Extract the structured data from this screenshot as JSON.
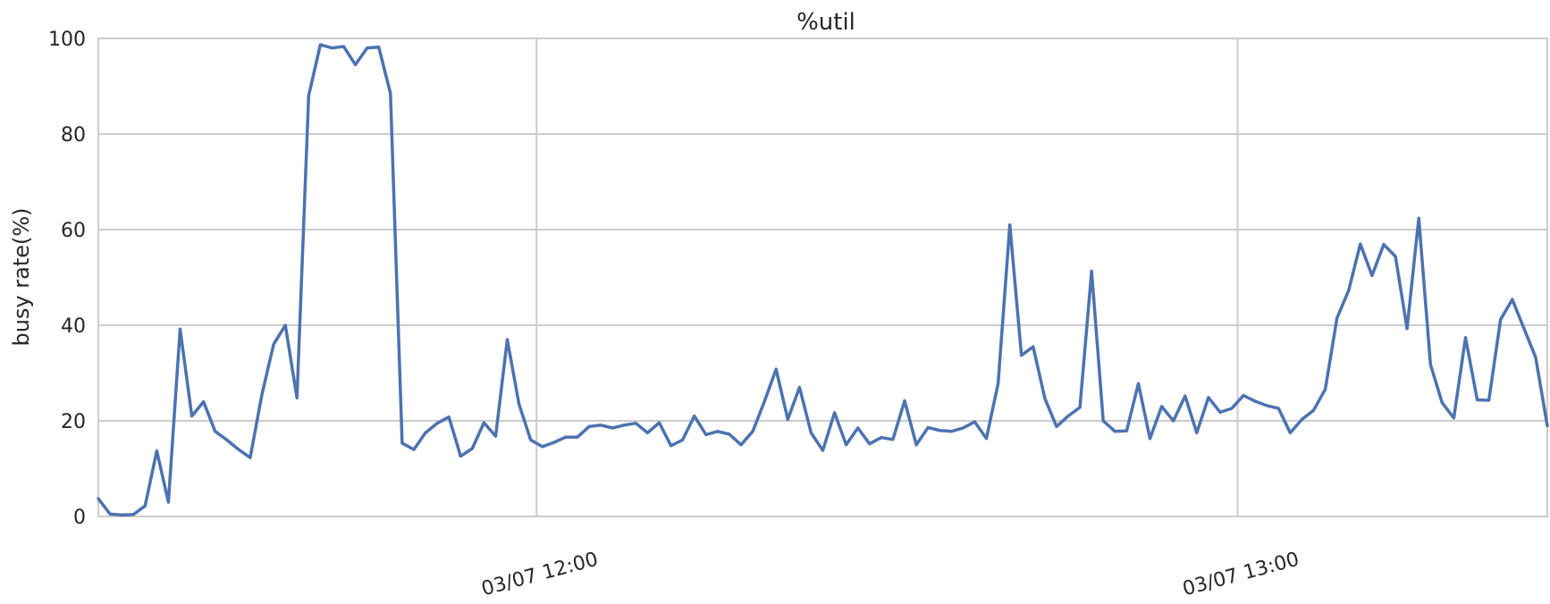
{
  "chart_data": {
    "type": "line",
    "title": "%util",
    "xlabel": "",
    "ylabel": "busy rate(%)",
    "ylim": [
      0,
      100
    ],
    "yticks": [
      "0",
      "20",
      "40",
      "60",
      "80",
      "100"
    ],
    "xticks": [
      {
        "label": "03/07 12:00",
        "value": "03/07 12:00"
      },
      {
        "label": "03/07 13:00",
        "value": "03/07 13:00"
      }
    ],
    "xlim": [
      "03/07 11:22:30",
      "03/07 13:26:30"
    ],
    "sample_interval": "1 min",
    "grid": true,
    "legend": "none",
    "series": [
      {
        "color": "#4c72b0",
        "values": [
          3.7,
          0.5,
          0.3,
          0.4,
          2.2,
          13.7,
          3.0,
          39.2,
          21.0,
          24.0,
          17.8,
          16.0,
          14.0,
          12.3,
          25.5,
          36.0,
          40.0,
          24.8,
          88.0,
          98.7,
          98.0,
          98.3,
          94.5,
          98.0,
          98.2,
          88.5,
          15.3,
          14.0,
          17.5,
          19.5,
          20.8,
          12.6,
          14.2,
          19.6,
          16.8,
          37.0,
          23.5,
          16.0,
          14.6,
          15.5,
          16.6,
          16.6,
          18.8,
          19.1,
          18.5,
          19.1,
          19.5,
          17.5,
          19.6,
          14.8,
          16.0,
          21.0,
          17.1,
          17.8,
          17.2,
          15.0,
          17.8,
          24.0,
          30.8,
          20.3,
          27.0,
          17.5,
          13.8,
          21.7,
          15.0,
          18.5,
          15.2,
          16.5,
          16.1,
          24.2,
          15.0,
          18.6,
          18.0,
          17.8,
          18.5,
          19.8,
          16.3,
          27.8,
          61.0,
          33.7,
          35.5,
          24.7,
          18.8,
          21.0,
          22.8,
          51.3,
          20.0,
          17.8,
          17.9,
          27.8,
          16.3,
          23.0,
          20.0,
          25.2,
          17.5,
          24.9,
          21.8,
          22.6,
          25.3,
          24.1,
          23.2,
          22.6,
          17.5,
          20.3,
          22.2,
          26.6,
          41.5,
          47.3,
          57.0,
          50.4,
          56.9,
          54.4,
          39.3,
          62.4,
          31.8,
          23.8,
          20.6,
          37.4,
          24.4,
          24.3,
          41.2,
          45.4,
          39.3,
          33.3,
          19.0
        ]
      }
    ]
  }
}
